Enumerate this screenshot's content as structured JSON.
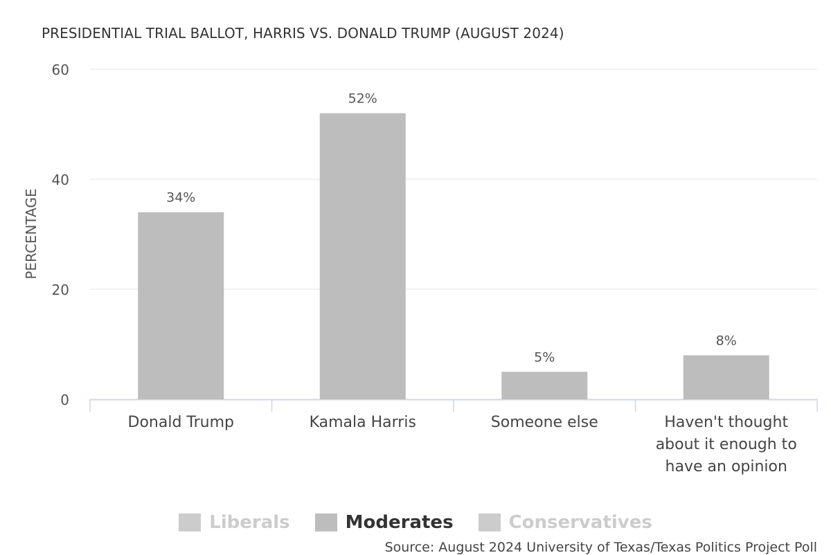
{
  "chart_data": {
    "type": "bar",
    "title": "PRESIDENTIAL TRIAL BALLOT, HARRIS VS. DONALD TRUMP (AUGUST 2024)",
    "ylabel": "PERCENTAGE",
    "xlabel": "",
    "ylim": [
      0,
      60
    ],
    "yticks": [
      0,
      20,
      40,
      60
    ],
    "grid": true,
    "categories": [
      [
        "Donald Trump"
      ],
      [
        "Kamala Harris"
      ],
      [
        "Someone else"
      ],
      [
        "Haven't thought",
        "about it enough to",
        "have an opinion"
      ]
    ],
    "series": [
      {
        "name": "Liberals",
        "visible": false,
        "color": "#cccccc"
      },
      {
        "name": "Moderates",
        "visible": true,
        "color": "#bdbdbd",
        "values": [
          34,
          52,
          5,
          8
        ]
      },
      {
        "name": "Conservatives",
        "visible": false,
        "color": "#cccccc"
      }
    ],
    "data_labels": [
      "34%",
      "52%",
      "5%",
      "8%"
    ],
    "legend_position": "bottom",
    "source": "Source: August 2024 University of Texas/Texas Politics Project Poll"
  },
  "colors": {
    "bar": "#bdbdbd",
    "grid": "#e6e6e6",
    "axis": "#ccd6eb"
  }
}
